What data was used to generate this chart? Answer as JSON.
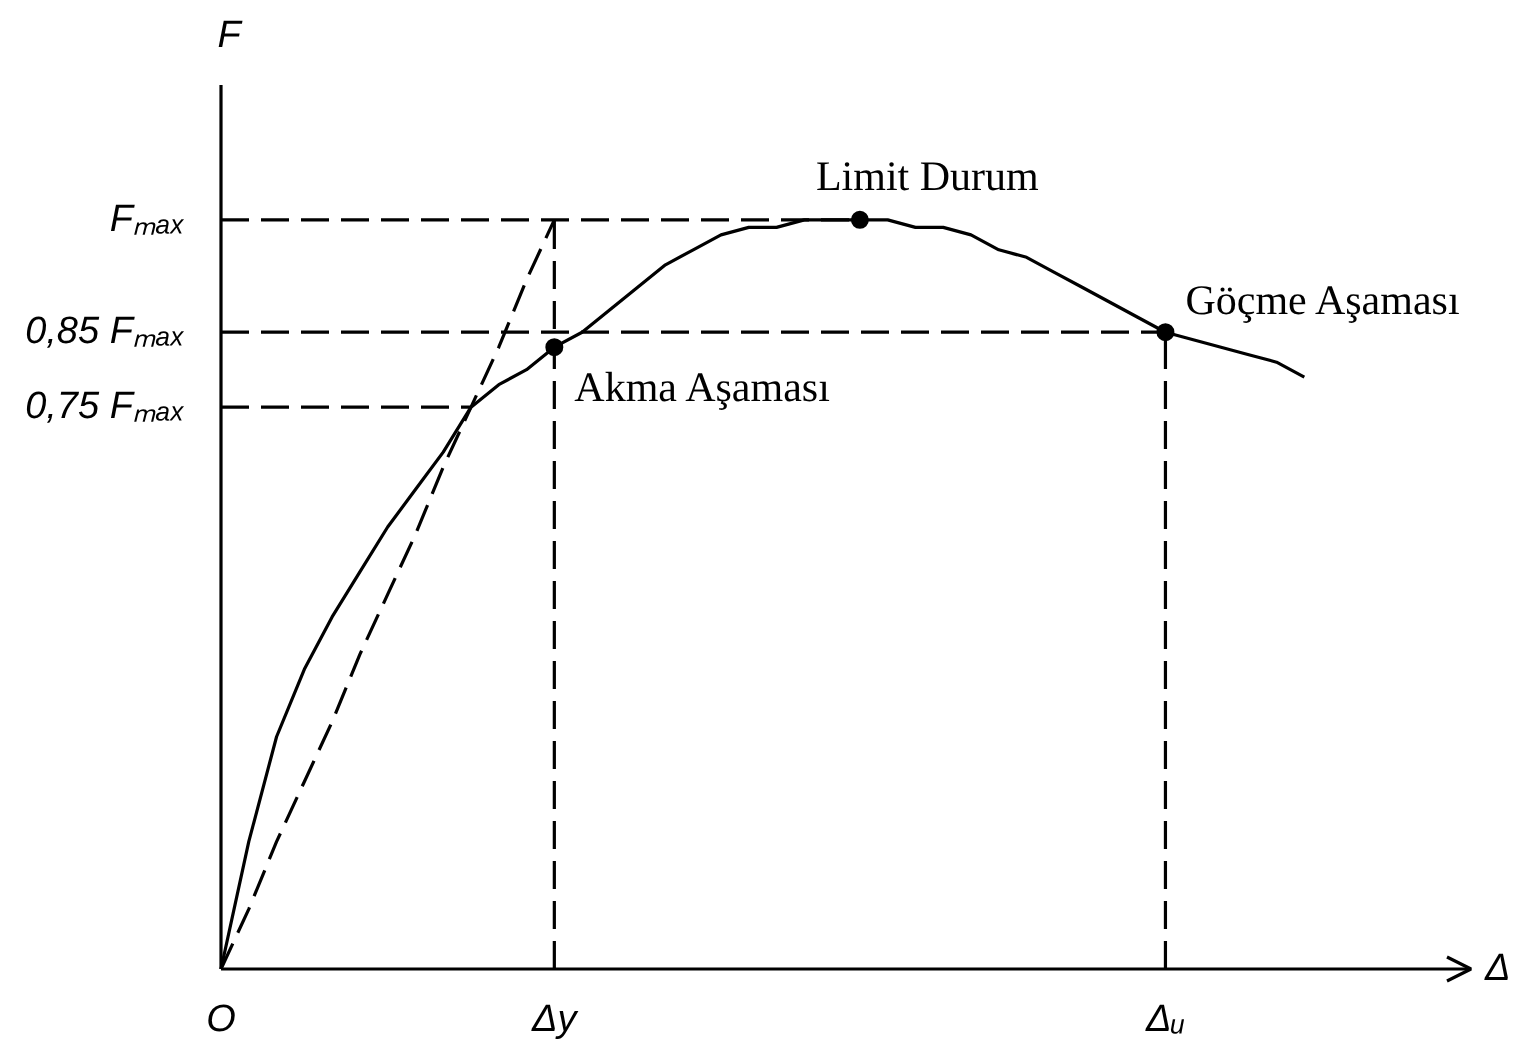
{
  "chart_data": {
    "type": "line",
    "xlabel": "Δ",
    "ylabel": "F",
    "categories": [
      "O",
      null,
      null,
      null,
      null,
      null,
      null,
      null,
      null,
      null,
      null,
      null,
      "Δy",
      null,
      null,
      null,
      null,
      null,
      null,
      null,
      null,
      null,
      null,
      null,
      null,
      null,
      null,
      null,
      null,
      null,
      null,
      null,
      null,
      null,
      "Δᵤ",
      null,
      null,
      null,
      null,
      null,
      null,
      null,
      null,
      null,
      null,
      null
    ],
    "ylim": [
      0,
      1.18
    ],
    "yticks": [
      {
        "value": 0.75,
        "label": "0,75 Fₘₐₓ"
      },
      {
        "value": 0.85,
        "label": "0,85 Fₘₐₓ"
      },
      {
        "value": 1,
        "label": "Fₘₐₓ"
      }
    ],
    "series": [
      {
        "color": "#000000",
        "line_style": "solid",
        "values": [
          0,
          0.17,
          0.31,
          0.4,
          0.47,
          0.53,
          0.59,
          0.64,
          0.69,
          0.75,
          0.78,
          0.8,
          0.83,
          0.85,
          0.88,
          0.91,
          0.94,
          0.96,
          0.98,
          0.99,
          0.99,
          1.0,
          1.0,
          1.0,
          1.0,
          0.99,
          0.99,
          0.98,
          0.96,
          0.95,
          0.93,
          0.91,
          0.89,
          0.87,
          0.85,
          0.84,
          0.83,
          0.82,
          0.81,
          0.79,
          null,
          null,
          null,
          null,
          null,
          null
        ]
      },
      {
        "type": "line",
        "color": "#000000",
        "line_style": "dashed",
        "values": [
          0,
          0.08,
          0.17,
          0.25,
          0.33,
          0.42,
          0.5,
          0.58,
          0.67,
          0.75,
          0.83,
          0.92,
          1.0,
          null,
          null,
          null,
          null,
          null,
          null,
          null,
          null,
          null,
          null,
          null,
          null,
          null,
          null,
          null,
          null,
          null,
          null,
          null,
          null,
          null,
          null,
          null,
          null,
          null,
          null,
          null,
          null,
          null,
          null,
          null,
          null,
          null
        ]
      },
      {
        "type": "line",
        "color": "#000000",
        "line_style": "dashed",
        "values": [
          1,
          1,
          1,
          1,
          1,
          1,
          1,
          1,
          1,
          1,
          1,
          1,
          1,
          1,
          1,
          1,
          1,
          1,
          1,
          1,
          1,
          1,
          1,
          1,
          null,
          null,
          null,
          null,
          null,
          null,
          null,
          null,
          null,
          null,
          null,
          null,
          null,
          null,
          null,
          null,
          null,
          null,
          null,
          null,
          null,
          null
        ]
      },
      {
        "type": "line",
        "color": "#000000",
        "line_style": "dashed",
        "values": [
          0.85,
          0.85,
          0.85,
          0.85,
          0.85,
          0.85,
          0.85,
          0.85,
          0.85,
          0.85,
          0.85,
          0.85,
          0.85,
          0.85,
          0.85,
          0.85,
          0.85,
          0.85,
          0.85,
          0.85,
          0.85,
          0.85,
          0.85,
          0.85,
          0.85,
          0.85,
          0.85,
          0.85,
          0.85,
          0.85,
          0.85,
          0.85,
          0.85,
          0.85,
          0.85,
          null,
          null,
          null,
          null,
          null,
          null,
          null,
          null,
          null,
          null,
          null
        ]
      },
      {
        "type": "line",
        "color": "#000000",
        "line_style": "dashed",
        "values": [
          0.75,
          0.75,
          0.75,
          0.75,
          0.75,
          0.75,
          0.75,
          0.75,
          0.75,
          0.75,
          null,
          null,
          null,
          null,
          null,
          null,
          null,
          null,
          null,
          null,
          null,
          null,
          null,
          null,
          null,
          null,
          null,
          null,
          null,
          null,
          null,
          null,
          null,
          null,
          null,
          null,
          null,
          null,
          null,
          null,
          null,
          null,
          null,
          null,
          null,
          null
        ]
      },
      {
        "type": "line",
        "color": "#000000",
        "line_style": "dashed",
        "x": [
          "Δy",
          "Δy"
        ],
        "values": [
          0,
          1
        ]
      },
      {
        "type": "line",
        "color": "#000000",
        "line_style": "dashed",
        "x": [
          "Δᵤ",
          "Δᵤ"
        ],
        "values": [
          0,
          0.85
        ]
      },
      {
        "type": "scatter",
        "color": "#000000",
        "marker": "circle",
        "values": [
          null,
          null,
          null,
          null,
          null,
          null,
          null,
          null,
          null,
          null,
          null,
          null,
          0.83,
          null,
          null,
          null,
          null,
          null,
          null,
          null,
          null,
          null,
          null,
          1.0,
          null,
          null,
          null,
          null,
          null,
          null,
          null,
          null,
          null,
          null,
          0.85,
          null,
          null,
          null,
          null,
          null,
          null,
          null,
          null,
          null,
          null,
          null
        ]
      }
    ],
    "annotations": [
      {
        "text": "Akma Aşaması",
        "x": "Δy",
        "y": 0.83
      },
      {
        "text": "Limit Durum",
        "y": 1.0
      },
      {
        "text": "Göçme Aşaması",
        "x": "Δᵤ",
        "y": 0.85
      }
    ]
  }
}
